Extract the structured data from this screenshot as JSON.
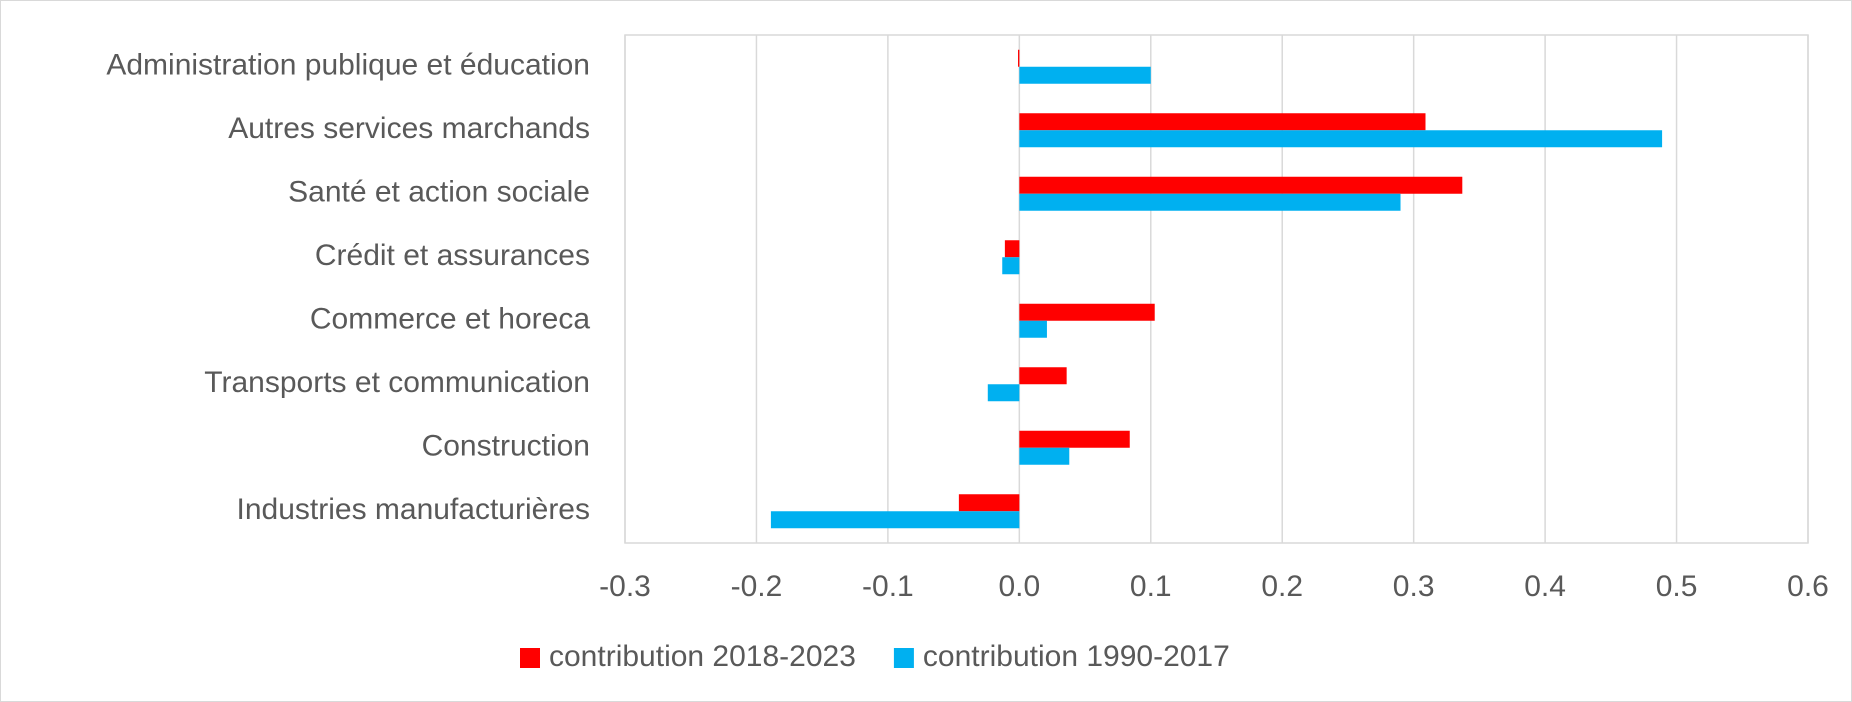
{
  "chart_data": {
    "type": "bar",
    "orientation": "horizontal",
    "categories": [
      "Administration publique et éducation",
      "Autres services marchands",
      "Santé et action sociale",
      "Crédit et assurances",
      "Commerce et horeca",
      "Transports et communication",
      "Construction",
      "Industries manufacturières"
    ],
    "series": [
      {
        "name": "contribution 2018-2023",
        "color": "#ff0000",
        "values": [
          -0.001,
          0.309,
          0.337,
          -0.011,
          0.103,
          0.036,
          0.084,
          -0.046
        ]
      },
      {
        "name": "contribution 1990-2017",
        "color": "#00b0f0",
        "values": [
          0.1,
          0.489,
          0.29,
          -0.013,
          0.021,
          -0.024,
          0.038,
          -0.189
        ]
      }
    ],
    "xlim": [
      -0.3,
      0.6
    ],
    "xticks": [
      -0.3,
      -0.2,
      -0.1,
      {
        "value": 0,
        "label": "0.0"
      },
      0.1,
      0.2,
      0.3,
      0.4,
      0.5,
      0.6
    ],
    "grid": true,
    "legend": "bottom"
  }
}
